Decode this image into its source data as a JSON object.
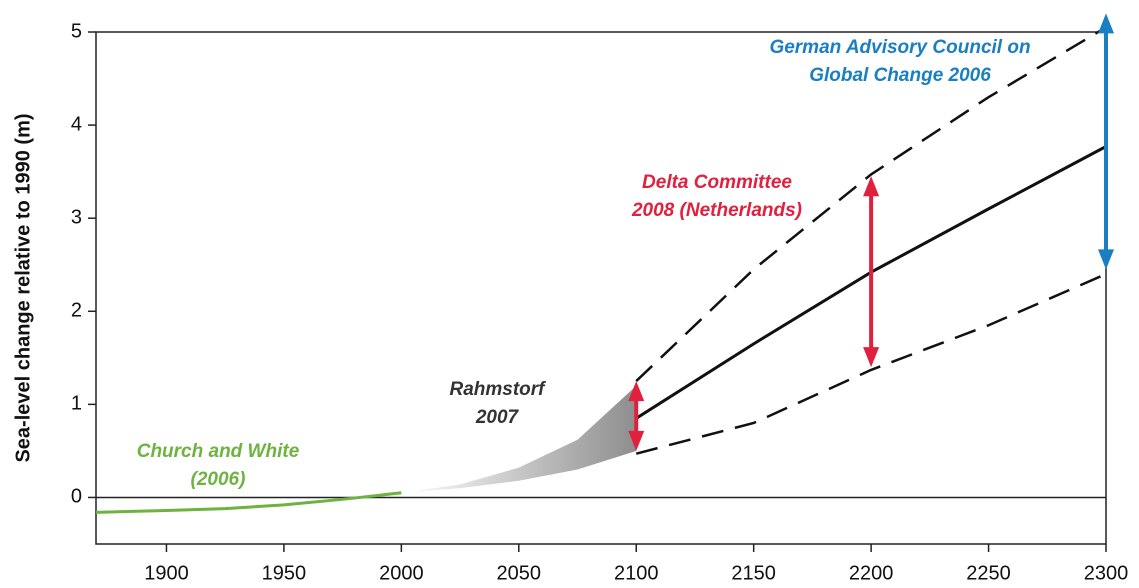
{
  "chart_data": {
    "type": "line",
    "y_label": "Sea-level change relative to 1990 (m)",
    "xlim": [
      1870,
      2300
    ],
    "xticks": [
      1900,
      1950,
      2000,
      2050,
      2100,
      2150,
      2200,
      2250,
      2300
    ],
    "ylim": [
      -0.5,
      5
    ],
    "yticks": [
      0,
      1,
      2,
      3,
      4,
      5
    ],
    "zero_line": true,
    "grid": false,
    "series": [
      {
        "style": "solid",
        "color": "#6db33f",
        "x": [
          1870,
          1900,
          1925,
          1950,
          1975,
          2000
        ],
        "values": [
          -0.16,
          -0.14,
          -0.12,
          -0.08,
          -0.02,
          0.05
        ]
      },
      {
        "style": "band",
        "color": "#555555",
        "x": [
          2000,
          2025,
          2050,
          2075,
          2100
        ],
        "lower": [
          0.05,
          0.1,
          0.18,
          0.3,
          0.5
        ],
        "upper": [
          0.05,
          0.14,
          0.32,
          0.62,
          1.2
        ]
      },
      {
        "style": "solid",
        "color": "#111111",
        "x": [
          2100,
          2150,
          2200,
          2250,
          2300
        ],
        "values": [
          0.85,
          1.65,
          2.42,
          3.1,
          3.77
        ]
      },
      {
        "style": "dashed",
        "color": "#111111",
        "x": [
          2100,
          2150,
          2200,
          2250,
          2300
        ],
        "values": [
          1.25,
          2.45,
          3.47,
          4.3,
          5.05
        ]
      },
      {
        "style": "dashed",
        "color": "#111111",
        "x": [
          2100,
          2150,
          2200,
          2250,
          2300
        ],
        "values": [
          0.47,
          0.8,
          1.37,
          1.85,
          2.4
        ]
      }
    ],
    "arrows": [
      {
        "x": 2100,
        "values": [
          0.5,
          1.25
        ],
        "color": "#e0203c"
      },
      {
        "x": 2200,
        "values": [
          1.4,
          3.45
        ],
        "color": "#e0203c"
      },
      {
        "x": 2300,
        "values": [
          2.45,
          5.2
        ],
        "color": "#1a7fc1"
      }
    ],
    "annotations": [
      {
        "lines": [
          "Church and White",
          "(2006)"
        ],
        "color": "#6db33f"
      },
      {
        "lines": [
          "Rahmstorf",
          "2007"
        ],
        "color": "#333333"
      },
      {
        "lines": [
          "Delta Committee",
          "2008 (Netherlands)"
        ],
        "color": "#e0203c"
      },
      {
        "lines": [
          "German Advisory Council on",
          "Global Change 2006"
        ],
        "color": "#1a7fc1"
      }
    ]
  }
}
